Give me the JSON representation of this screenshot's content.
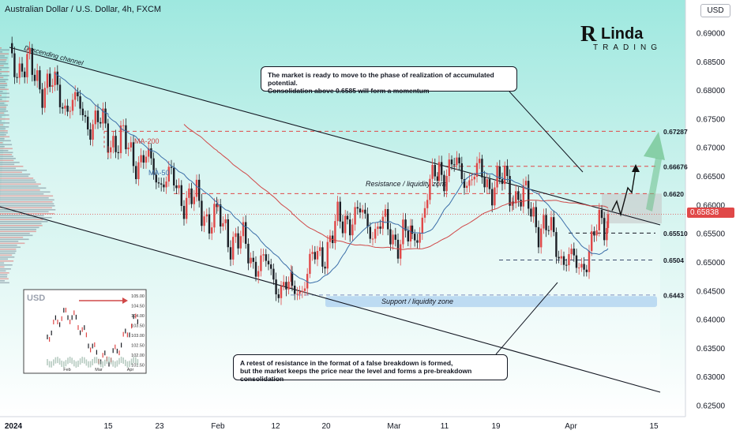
{
  "header": {
    "title": "Australian Dollar / U.S. Dollar, 4h, FXCM",
    "currency": "USD"
  },
  "logo": {
    "line1": "RLinda",
    "line2": "TRADING"
  },
  "chart_data": {
    "type": "candlestick",
    "symbol": "AUDUSD",
    "timeframe": "4h",
    "ylim": [
      0.6225,
      0.6935
    ],
    "yticks": [
      "0.69000",
      "0.68500",
      "0.68000",
      "0.67500",
      "0.67000",
      "0.66500",
      "0.66000",
      "0.65500",
      "0.65000",
      "0.64500",
      "0.64000",
      "0.63500",
      "0.63000",
      "0.62500"
    ],
    "xticks": [
      "2024",
      "15",
      "23",
      "Feb",
      "12",
      "20",
      "Mar",
      "11",
      "19",
      "Apr",
      "15"
    ],
    "current_price": "0.65838",
    "levels": [
      {
        "label": "0.67287",
        "value": 0.67287,
        "color": "#e04848",
        "style": "dashed"
      },
      {
        "label": "0.66676",
        "value": 0.66676,
        "color": "#e04848",
        "style": "dashed"
      },
      {
        "label": "0.6620",
        "value": 0.662,
        "color": "#e04848",
        "style": "dashed"
      },
      {
        "label": "0.65510",
        "value": 0.6551,
        "color": "#131722",
        "style": "dashed"
      },
      {
        "label": "0.6504",
        "value": 0.6504,
        "color": "#3a4a6b",
        "style": "dashed"
      },
      {
        "label": "0.6443",
        "value": 0.6443,
        "color": "#7b8fc0",
        "style": "dashed"
      }
    ],
    "annotations": [
      {
        "text": "Descending channel"
      },
      {
        "text": "MA-200",
        "color": "#d04040"
      },
      {
        "text": "MA-50",
        "color": "#3b6ea8"
      },
      {
        "text": "Resistance / liquidity zone"
      },
      {
        "text": "Support / liquidity zone"
      }
    ],
    "callouts": [
      "The market is ready to move to the phase of realization of accumulated potential.\nConsolidation above 0.6585 will form a momentum",
      "A retest of resistance in the format of a false breakdown is formed,\nbut the market keeps the price near the level and forms a pre-breakdown consolidation"
    ],
    "key_points": [
      {
        "x": "2024",
        "y": 0.686
      },
      {
        "x": "15",
        "y": 0.6725
      },
      {
        "x": "Feb",
        "y": 0.657
      },
      {
        "x": "12",
        "y": 0.6443
      },
      {
        "x": "20",
        "y": 0.6585
      },
      {
        "x": "Mar",
        "y": 0.6535
      },
      {
        "x": "11",
        "y": 0.6667
      },
      {
        "x": "19",
        "y": 0.663
      },
      {
        "x": "Apr",
        "y": 0.6485
      },
      {
        "x": "Apr+",
        "y": 0.6584
      }
    ],
    "inset": {
      "title": "USD",
      "axis_labels": [
        "105.00",
        "104.50",
        "104.00",
        "103.50",
        "103.00",
        "102.50",
        "102.00",
        "101.50"
      ],
      "xticks": [
        "Feb",
        "Mar",
        "Apr"
      ]
    }
  }
}
